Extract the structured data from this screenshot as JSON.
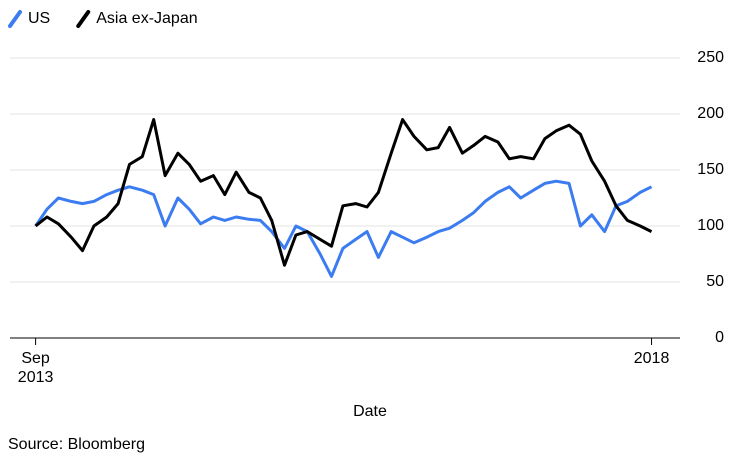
{
  "chart_data": {
    "type": "line",
    "x_label": "Date",
    "source": "Source: Bloomberg",
    "x": [
      2013.67,
      2013.75,
      2013.83,
      2013.92,
      2014,
      2014.08,
      2014.17,
      2014.25,
      2014.33,
      2014.42,
      2014.5,
      2014.58,
      2014.67,
      2014.75,
      2014.83,
      2014.92,
      2015,
      2015.08,
      2015.17,
      2015.25,
      2015.33,
      2015.42,
      2015.5,
      2015.58,
      2015.67,
      2015.75,
      2015.83,
      2015.92,
      2016,
      2016.08,
      2016.17,
      2016.25,
      2016.33,
      2016.42,
      2016.5,
      2016.58,
      2016.67,
      2016.75,
      2016.83,
      2016.92,
      2017,
      2017.08,
      2017.17,
      2017.25,
      2017.33,
      2017.42,
      2017.5,
      2017.58,
      2017.67,
      2017.75,
      2017.83,
      2017.92,
      2018
    ],
    "series": [
      {
        "name": "US",
        "color": "#3b7cf0",
        "values": [
          100,
          115,
          125,
          122,
          120,
          122,
          128,
          132,
          135,
          132,
          128,
          100,
          125,
          115,
          102,
          108,
          105,
          108,
          106,
          105,
          95,
          80,
          100,
          95,
          75,
          55,
          80,
          88,
          95,
          72,
          95,
          90,
          85,
          90,
          95,
          98,
          105,
          112,
          122,
          130,
          135,
          125,
          132,
          138,
          140,
          138,
          100,
          110,
          95,
          118,
          122,
          130,
          135
        ]
      },
      {
        "name": "Asia ex-Japan",
        "color": "#000000",
        "values": [
          100,
          108,
          102,
          90,
          78,
          100,
          108,
          120,
          155,
          162,
          195,
          145,
          165,
          155,
          140,
          145,
          128,
          148,
          130,
          125,
          105,
          65,
          92,
          95,
          88,
          82,
          118,
          120,
          117,
          130,
          165,
          195,
          180,
          168,
          170,
          188,
          165,
          172,
          180,
          175,
          160,
          162,
          160,
          178,
          185,
          190,
          182,
          158,
          140,
          118,
          105,
          100,
          95
        ]
      }
    ],
    "xlim": [
      2013.49,
      2018.2
    ],
    "xticks": [
      {
        "value": 2013.67,
        "label": "Sep 2013"
      },
      2018
    ],
    "ylim": [
      0,
      250
    ],
    "yticks": [
      0,
      50,
      100,
      150,
      200,
      250
    ],
    "grid": true
  }
}
